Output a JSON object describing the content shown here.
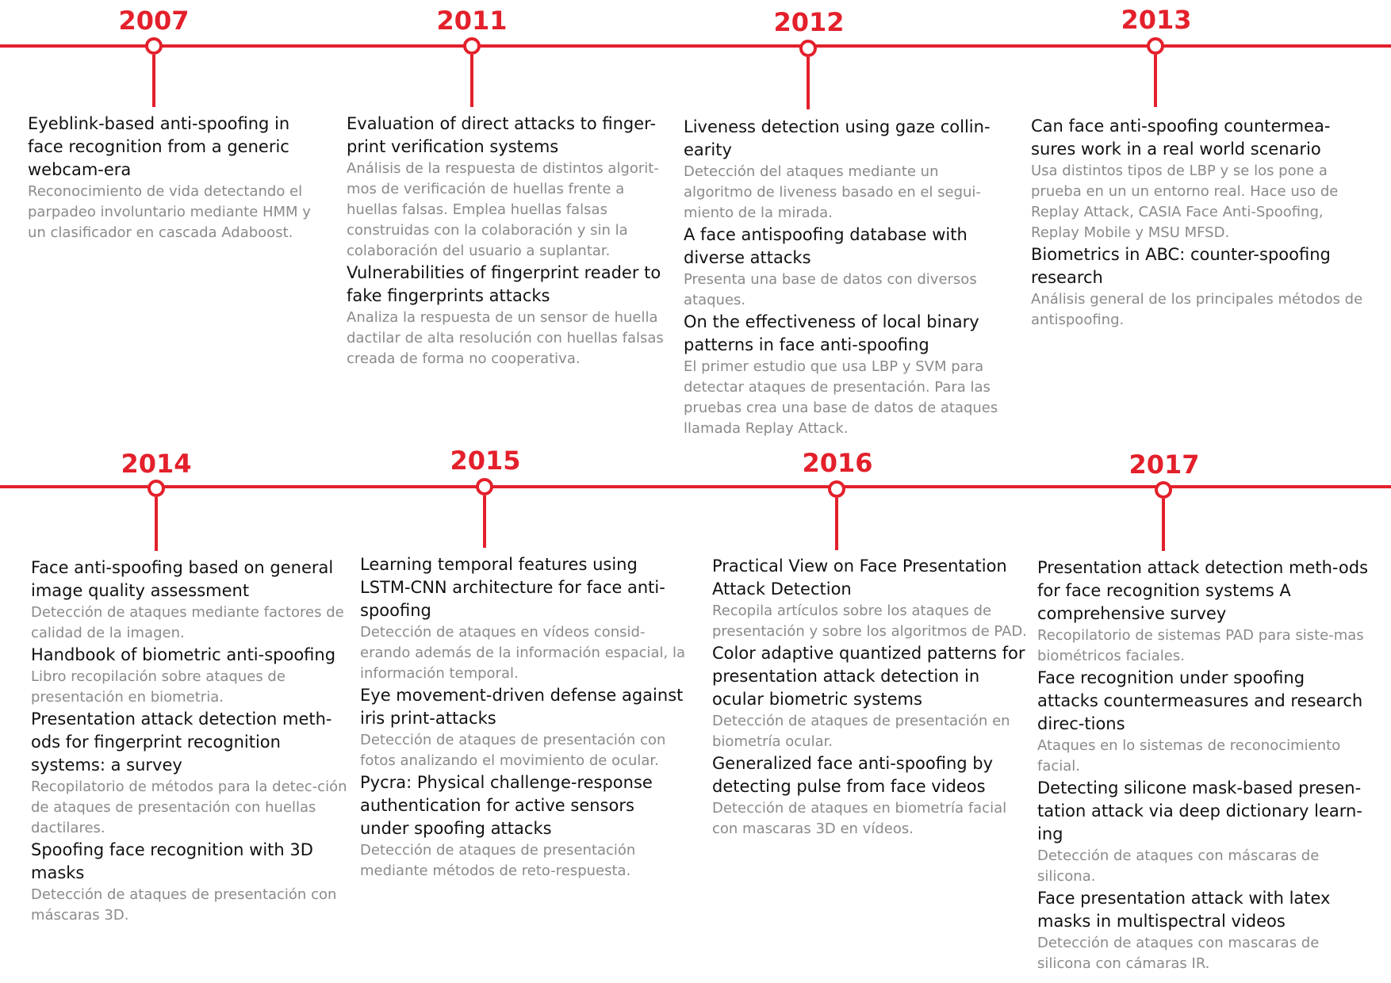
{
  "accent_color": "#e3202b",
  "rows": [
    {
      "items": [
        {
          "year": "2007",
          "entries": [
            {
              "title": "Eyeblink-based anti-spoofing in face recognition from a generic webcam-era",
              "description": "Reconocimiento de vida detectando el parpadeo involuntario mediante HMM y un clasificador en cascada Adaboost."
            }
          ]
        },
        {
          "year": "2011",
          "entries": [
            {
              "title": "Evaluation of direct attacks to finger-print verification systems",
              "description": "Análisis de la respuesta de distintos algorit-mos de verificación de huellas frente a huellas falsas. Emplea huellas falsas construidas con la colaboración y sin la colaboración del usuario a suplantar."
            },
            {
              "title": "Vulnerabilities of fingerprint reader to fake fingerprints attacks",
              "description": "Analiza la respuesta de un sensor de huella dactilar de alta resolución con huellas falsas creada de forma no cooperativa."
            }
          ]
        },
        {
          "year": "2012",
          "entries": [
            {
              "title": "Liveness detection using gaze collin-earity",
              "description": "Detección del ataques mediante un algoritmo de liveness basado en el segui-miento de la mirada."
            },
            {
              "title": "A face antispoofing database with diverse attacks",
              "description": "Presenta una base de datos con diversos ataques."
            },
            {
              "title": "On the effectiveness of local binary patterns in face anti-spoofing",
              "description": "El primer estudio que usa LBP y SVM para detectar ataques de presentación. Para las pruebas crea una base de datos de ataques llamada Replay Attack."
            }
          ]
        },
        {
          "year": "2013",
          "entries": [
            {
              "title": "Can face anti-spoofing countermea-sures work in a real world scenario",
              "description": "Usa distintos tipos de LBP y se los pone a prueba en un un entorno real. Hace uso de Replay Attack, CASIA Face Anti-Spoofing, Replay Mobile y MSU MFSD."
            },
            {
              "title": "Biometrics in ABC: counter-spoofing research",
              "description": "Análisis general de los principales métodos de antispoofing."
            }
          ]
        }
      ]
    },
    {
      "items": [
        {
          "year": "2014",
          "entries": [
            {
              "title": "Face anti-spoofing based on general image quality assessment",
              "description": "Detección de ataques mediante factores de calidad de la imagen."
            },
            {
              "title": "Handbook of biometric anti-spoofing",
              "description": "Libro recopilación sobre ataques de presentación en biometria."
            },
            {
              "title": "Presentation attack detection meth-ods for fingerprint recognition systems: a survey",
              "description": "Recopilatorio de métodos para la detec-ción de ataques de presentación con huellas dactilares."
            },
            {
              "title": "Spoofing face recognition with 3D masks",
              "description": "Detección de ataques de presentación con máscaras 3D."
            }
          ]
        },
        {
          "year": "2015",
          "entries": [
            {
              "title": "Learning temporal features using LSTM-CNN architecture for face anti-spoofing",
              "description": "Detección de ataques en vídeos consid-erando además de la información espacial, la información temporal."
            },
            {
              "title": "Eye movement-driven defense against iris print-attacks",
              "description": "Detección de ataques de presentación con fotos analizando el movimiento de ocular."
            },
            {
              "title": "Pycra: Physical challenge-response authentication for active sensors under spoofing attacks",
              "description": "Detección de ataques de presentación mediante métodos de reto-respuesta."
            }
          ]
        },
        {
          "year": "2016",
          "entries": [
            {
              "title": "Practical View on Face Presentation Attack Detection",
              "description": "Recopila artículos sobre los ataques de presentación y sobre los algoritmos de PAD."
            },
            {
              "title": "Color adaptive quantized patterns for presentation attack detection in ocular biometric systems",
              "description": "Detección de ataques de presentación en biometría ocular."
            },
            {
              "title": "Generalized face anti-spoofing by detecting pulse from face videos",
              "description": "Detección de ataques en biometría facial con mascaras 3D en vídeos."
            }
          ]
        },
        {
          "year": "2017",
          "entries": [
            {
              "title": "Presentation attack detection meth-ods for face recognition systems A comprehensive survey",
              "description": "Recopilatorio de sistemas PAD para siste-mas biométricos faciales."
            },
            {
              "title": "Face recognition under spoofing attacks countermeasures and research direc-tions",
              "description": "Ataques en lo sistemas de reconocimiento facial."
            },
            {
              "title": "Detecting silicone mask-based presen-tation attack via deep dictionary learn-ing",
              "description": "Detección de ataques con máscaras de silicona."
            },
            {
              "title": "Face presentation attack with latex masks in multispectral videos",
              "description": "Detección de ataques con mascaras de silicona con cámaras IR."
            }
          ]
        }
      ]
    }
  ]
}
